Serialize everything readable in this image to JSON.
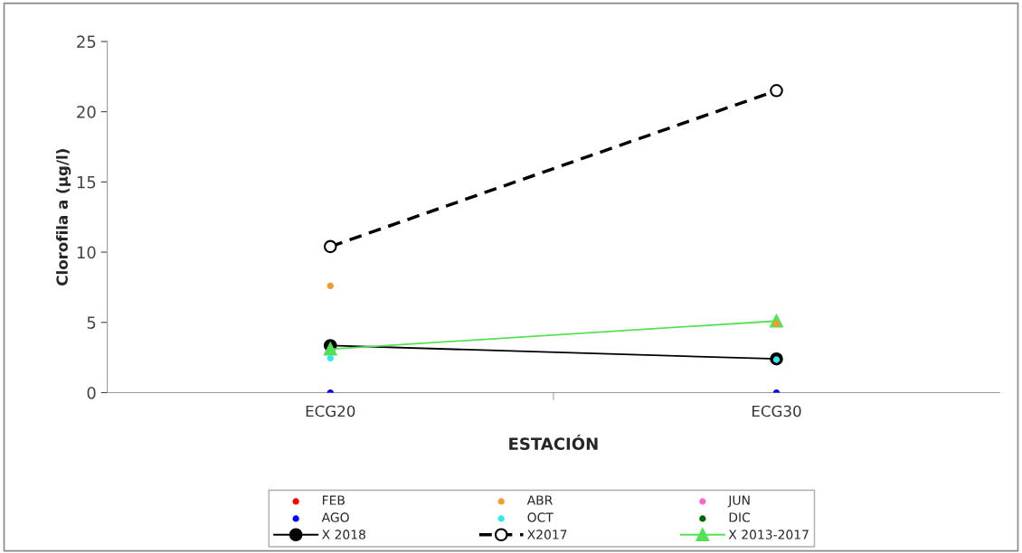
{
  "chart_data": {
    "type": "scatter",
    "xlabel": "ESTACIÓN",
    "ylabel": "Clorofila a (µg/l)",
    "categories": [
      "ECG20",
      "ECG30"
    ],
    "ylim": [
      0,
      25
    ],
    "yticks": [
      0,
      5,
      10,
      15,
      20,
      25
    ],
    "grid": false,
    "legend": "bottom",
    "marker": "circle",
    "series": [
      {
        "name": "FEB",
        "color": "#ff0000",
        "values": [
          null,
          null
        ]
      },
      {
        "name": "ABR",
        "color": "#f79a2e",
        "values": [
          7.6,
          4.9
        ]
      },
      {
        "name": "JUN",
        "color": "#ff66cc",
        "values": [
          null,
          null
        ]
      },
      {
        "name": "AGO",
        "color": "#0000ff",
        "values": [
          0,
          0
        ]
      },
      {
        "name": "OCT",
        "color": "#33e6f0",
        "values": [
          2.45,
          2.35
        ]
      },
      {
        "name": "DIC",
        "color": "#006600",
        "values": [
          null,
          null
        ]
      },
      {
        "name": "X 2018",
        "type": "line",
        "color": "#000000",
        "values": [
          3.35,
          2.4
        ]
      },
      {
        "name": "X2017",
        "type": "line",
        "color": "#000000",
        "line_style": "dashed",
        "marker": "open_circle",
        "values": [
          10.4,
          21.5
        ]
      },
      {
        "name": "X 2013-2017",
        "type": "line",
        "color": "#55e055",
        "marker": "triangle",
        "values": [
          3.1,
          5.1
        ]
      }
    ]
  }
}
